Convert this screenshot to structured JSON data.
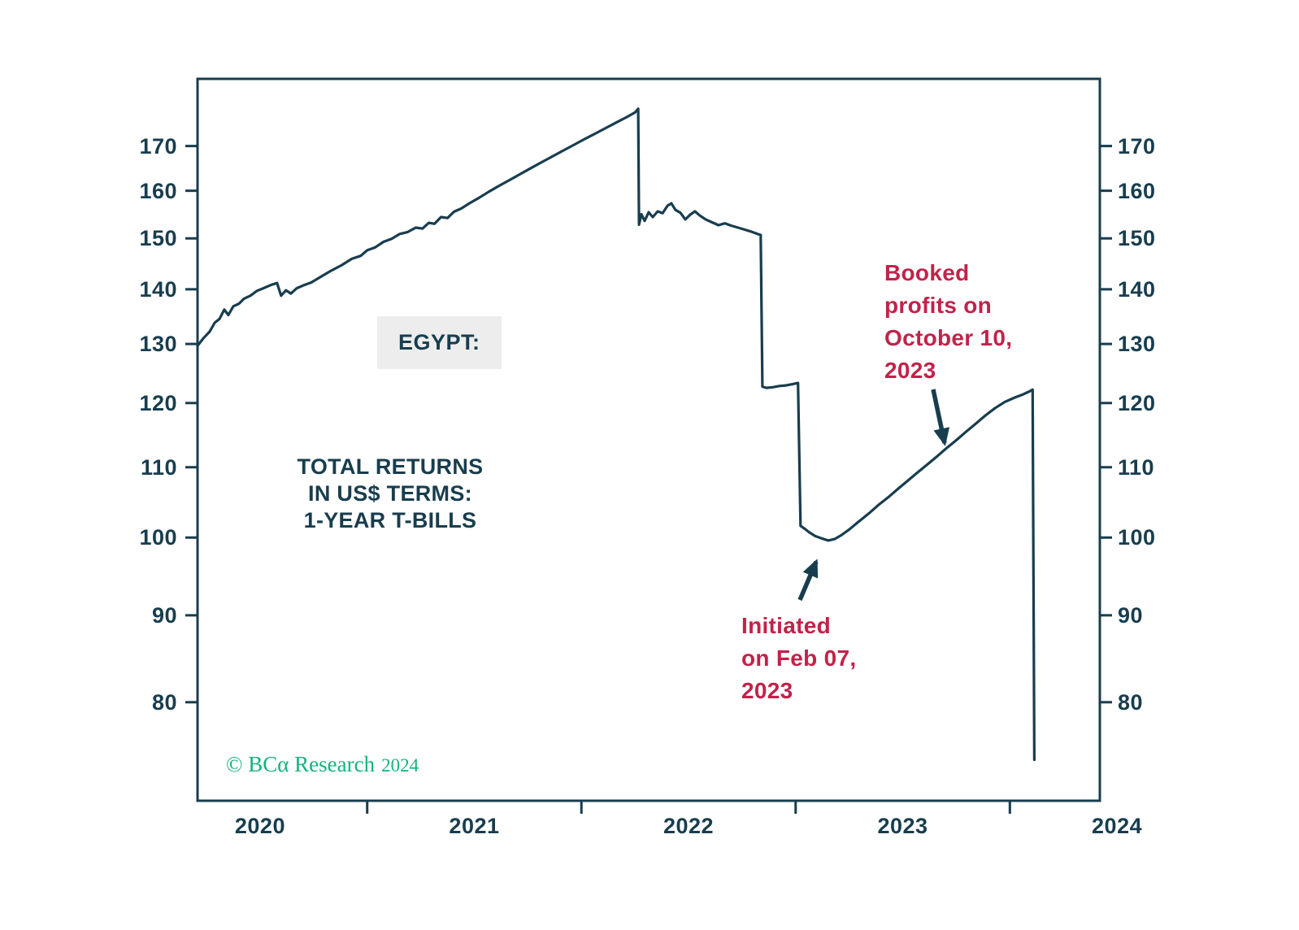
{
  "colors": {
    "ink": "#183d4e",
    "red": "#c2224a",
    "green": "#13b27e",
    "label_bg": "#ededed",
    "background": "#ffffff"
  },
  "labels": {
    "country": "EGYPT:",
    "description": "TOTAL RETURNS\nIN US$ TERMS:\n1-YEAR T-BILLS"
  },
  "annotations": {
    "booked": "Booked\nprofits on\nOctober 10,\n2023",
    "initiated": "Initiated\non Feb 07,\n2023"
  },
  "footer": {
    "copyright": "© BCα Research",
    "year": "2024"
  },
  "chart_data": {
    "type": "line",
    "title": "EGYPT: TOTAL RETURNS IN US$ TERMS: 1-YEAR T-BILLS",
    "grid": false,
    "legend": "none",
    "y_axis": {
      "scale": "log",
      "min": 70.0,
      "max": 186.2,
      "ticks": [
        80,
        90,
        100,
        110,
        120,
        130,
        140,
        150,
        160,
        170
      ],
      "tick_labels_both_sides": true
    },
    "x_axis": {
      "min": 2020.208,
      "max": 2024.42,
      "year_ticks": [
        2021,
        2022,
        2023,
        2024
      ],
      "labels": [
        {
          "text": "2020",
          "pos": 2020.5
        },
        {
          "text": "2021",
          "pos": 2021.5
        },
        {
          "text": "2022",
          "pos": 2022.5
        },
        {
          "text": "2023",
          "pos": 2023.5
        },
        {
          "text": "2024",
          "pos": 2024.5
        }
      ]
    },
    "events": [
      {
        "label": "Initiated on Feb 07, 2023",
        "date": "2023-02-07",
        "approx_value": 100
      },
      {
        "label": "Booked profits on October 10, 2023",
        "date": "2023-10-10",
        "approx_value": 113
      }
    ],
    "series": [
      {
        "name": "Egypt 1-year T-bills total return (US$)",
        "points": [
          [
            2020.208,
            129.7
          ],
          [
            2020.235,
            131.0
          ],
          [
            2020.265,
            132.2
          ],
          [
            2020.288,
            133.8
          ],
          [
            2020.311,
            134.5
          ],
          [
            2020.333,
            136.2
          ],
          [
            2020.352,
            135.2
          ],
          [
            2020.375,
            136.8
          ],
          [
            2020.402,
            137.3
          ],
          [
            2020.424,
            138.2
          ],
          [
            2020.455,
            138.8
          ],
          [
            2020.485,
            139.7
          ],
          [
            2020.515,
            140.2
          ],
          [
            2020.549,
            140.8
          ],
          [
            2020.579,
            141.2
          ],
          [
            2020.598,
            138.8
          ],
          [
            2020.621,
            139.8
          ],
          [
            2020.644,
            139.2
          ],
          [
            2020.671,
            140.2
          ],
          [
            2020.705,
            140.8
          ],
          [
            2020.739,
            141.3
          ],
          [
            2020.784,
            142.4
          ],
          [
            2020.833,
            143.6
          ],
          [
            2020.879,
            144.6
          ],
          [
            2020.928,
            145.9
          ],
          [
            2020.97,
            146.5
          ],
          [
            2021.0,
            147.6
          ],
          [
            2021.038,
            148.2
          ],
          [
            2021.076,
            149.3
          ],
          [
            2021.114,
            149.9
          ],
          [
            2021.152,
            150.9
          ],
          [
            2021.189,
            151.3
          ],
          [
            2021.227,
            152.2
          ],
          [
            2021.258,
            152.0
          ],
          [
            2021.288,
            153.2
          ],
          [
            2021.314,
            153.0
          ],
          [
            2021.345,
            154.4
          ],
          [
            2021.375,
            154.2
          ],
          [
            2021.405,
            155.5
          ],
          [
            2021.439,
            156.2
          ],
          [
            2021.477,
            157.3
          ],
          [
            2021.523,
            158.5
          ],
          [
            2021.568,
            159.8
          ],
          [
            2021.617,
            161.1
          ],
          [
            2021.667,
            162.4
          ],
          [
            2021.716,
            163.7
          ],
          [
            2021.765,
            165.0
          ],
          [
            2021.814,
            166.3
          ],
          [
            2021.864,
            167.6
          ],
          [
            2021.913,
            168.9
          ],
          [
            2021.962,
            170.2
          ],
          [
            2022.011,
            171.5
          ],
          [
            2022.061,
            172.8
          ],
          [
            2022.11,
            174.1
          ],
          [
            2022.159,
            175.4
          ],
          [
            2022.208,
            176.7
          ],
          [
            2022.25,
            177.9
          ],
          [
            2022.265,
            178.8
          ],
          [
            2022.269,
            152.8
          ],
          [
            2022.28,
            155.0
          ],
          [
            2022.295,
            153.6
          ],
          [
            2022.314,
            155.4
          ],
          [
            2022.333,
            154.4
          ],
          [
            2022.356,
            155.6
          ],
          [
            2022.379,
            155.2
          ],
          [
            2022.402,
            156.8
          ],
          [
            2022.42,
            157.3
          ],
          [
            2022.439,
            155.9
          ],
          [
            2022.462,
            155.3
          ],
          [
            2022.485,
            153.9
          ],
          [
            2022.508,
            154.9
          ],
          [
            2022.53,
            155.6
          ],
          [
            2022.553,
            154.7
          ],
          [
            2022.58,
            153.9
          ],
          [
            2022.61,
            153.3
          ],
          [
            2022.64,
            152.7
          ],
          [
            2022.67,
            153.1
          ],
          [
            2022.7,
            152.6
          ],
          [
            2022.731,
            152.2
          ],
          [
            2022.761,
            151.8
          ],
          [
            2022.791,
            151.4
          ],
          [
            2022.822,
            150.9
          ],
          [
            2022.837,
            150.7
          ],
          [
            2022.845,
            122.7
          ],
          [
            2022.864,
            122.5
          ],
          [
            2022.894,
            122.6
          ],
          [
            2022.924,
            122.8
          ],
          [
            2022.955,
            122.9
          ],
          [
            2022.985,
            123.1
          ],
          [
            2023.011,
            123.3
          ],
          [
            2023.023,
            101.6
          ],
          [
            2023.042,
            101.2
          ],
          [
            2023.064,
            100.7
          ],
          [
            2023.091,
            100.2
          ],
          [
            2023.121,
            99.9
          ],
          [
            2023.152,
            99.6
          ],
          [
            2023.182,
            99.8
          ],
          [
            2023.212,
            100.3
          ],
          [
            2023.25,
            101.1
          ],
          [
            2023.295,
            102.2
          ],
          [
            2023.341,
            103.3
          ],
          [
            2023.386,
            104.5
          ],
          [
            2023.432,
            105.6
          ],
          [
            2023.477,
            106.8
          ],
          [
            2023.523,
            108.0
          ],
          [
            2023.568,
            109.2
          ],
          [
            2023.614,
            110.4
          ],
          [
            2023.659,
            111.6
          ],
          [
            2023.705,
            112.9
          ],
          [
            2023.75,
            114.1
          ],
          [
            2023.795,
            115.4
          ],
          [
            2023.841,
            116.7
          ],
          [
            2023.886,
            118.0
          ],
          [
            2023.932,
            119.2
          ],
          [
            2023.977,
            120.2
          ],
          [
            2024.023,
            120.9
          ],
          [
            2024.061,
            121.4
          ],
          [
            2024.091,
            121.9
          ],
          [
            2024.106,
            122.2
          ],
          [
            2024.114,
            74.0
          ]
        ]
      }
    ]
  }
}
